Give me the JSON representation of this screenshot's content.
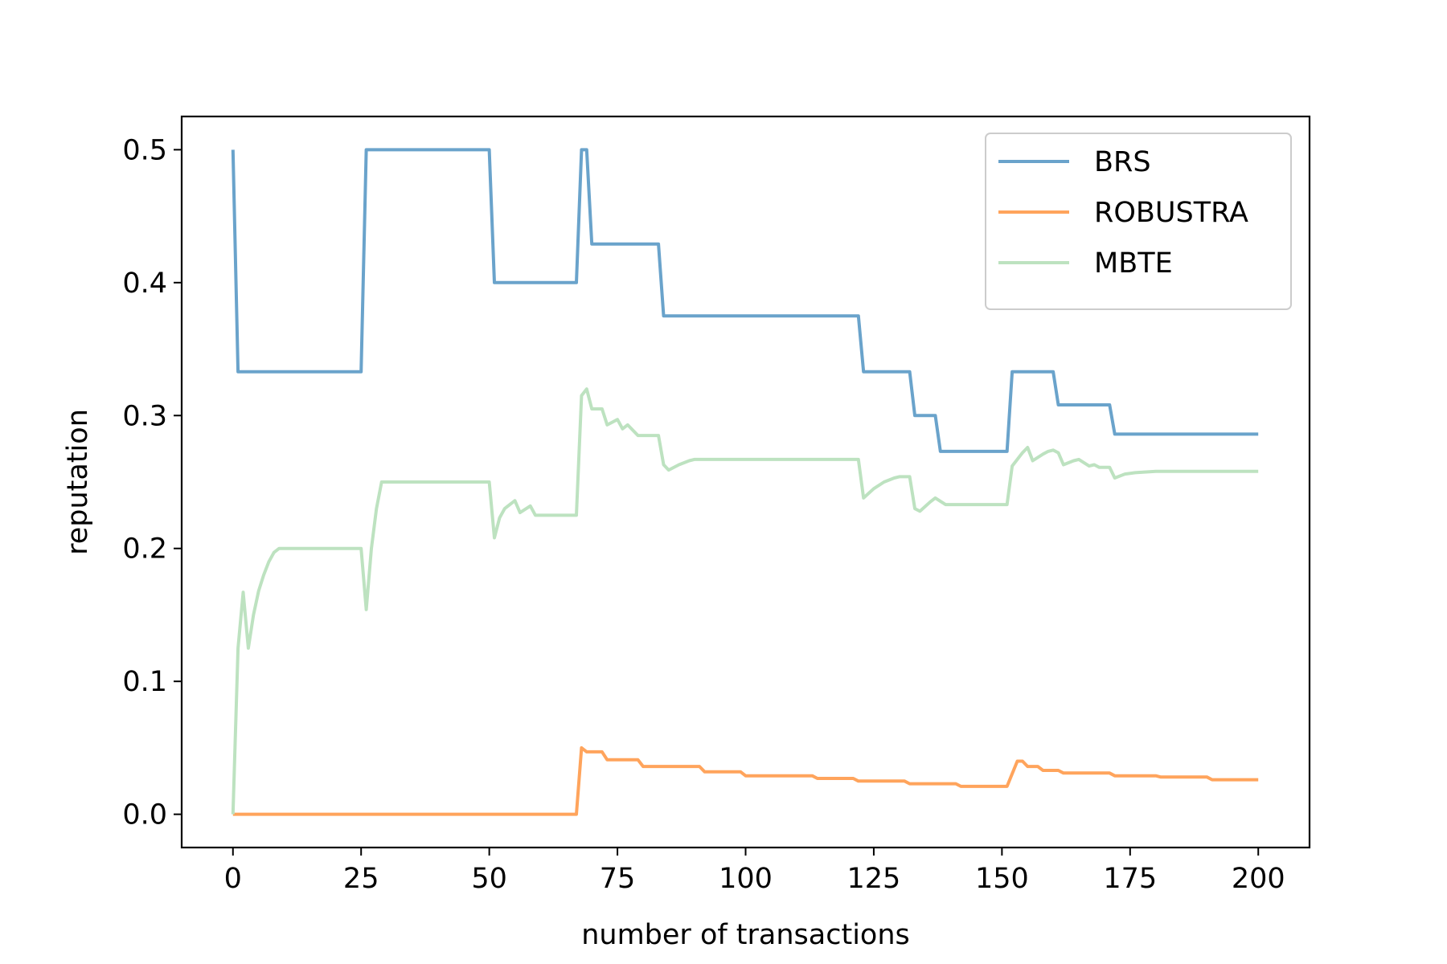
{
  "chart_data": {
    "type": "line",
    "title": "",
    "xlabel": "number of transactions",
    "ylabel": "reputation",
    "xlim": [
      -10,
      210
    ],
    "ylim": [
      -0.025,
      0.525
    ],
    "xticks": [
      0,
      25,
      50,
      75,
      100,
      125,
      150,
      175,
      200
    ],
    "xtick_labels": [
      "0",
      "25",
      "50",
      "75",
      "100",
      "125",
      "150",
      "175",
      "200"
    ],
    "yticks": [
      0.0,
      0.1,
      0.2,
      0.3,
      0.4,
      0.5
    ],
    "ytick_labels": [
      "0.0",
      "0.1",
      "0.2",
      "0.3",
      "0.4",
      "0.5"
    ],
    "grid": false,
    "legend": "top-right",
    "series": [
      {
        "name": "BRS",
        "color": "#6aa3cb",
        "points": [
          [
            0,
            0.5
          ],
          [
            1,
            0.333
          ],
          [
            25,
            0.333
          ],
          [
            26,
            0.5
          ],
          [
            50,
            0.5
          ],
          [
            51,
            0.4
          ],
          [
            67,
            0.4
          ],
          [
            68,
            0.5
          ],
          [
            69,
            0.5
          ],
          [
            70,
            0.429
          ],
          [
            83,
            0.429
          ],
          [
            84,
            0.375
          ],
          [
            122,
            0.375
          ],
          [
            123,
            0.333
          ],
          [
            132,
            0.333
          ],
          [
            133,
            0.3
          ],
          [
            137,
            0.3
          ],
          [
            138,
            0.273
          ],
          [
            151,
            0.273
          ],
          [
            152,
            0.333
          ],
          [
            160,
            0.333
          ],
          [
            161,
            0.308
          ],
          [
            171,
            0.308
          ],
          [
            172,
            0.286
          ],
          [
            200,
            0.286
          ]
        ]
      },
      {
        "name": "ROBUSTRA",
        "color": "#ffa45c",
        "points": [
          [
            0,
            0
          ],
          [
            67,
            0
          ],
          [
            68,
            0.05
          ],
          [
            69,
            0.047
          ],
          [
            72,
            0.047
          ],
          [
            73,
            0.041
          ],
          [
            79,
            0.041
          ],
          [
            80,
            0.036
          ],
          [
            91,
            0.036
          ],
          [
            92,
            0.032
          ],
          [
            99,
            0.032
          ],
          [
            100,
            0.029
          ],
          [
            113,
            0.029
          ],
          [
            114,
            0.027
          ],
          [
            121,
            0.027
          ],
          [
            122,
            0.025
          ],
          [
            131,
            0.025
          ],
          [
            132,
            0.023
          ],
          [
            141,
            0.023
          ],
          [
            142,
            0.021
          ],
          [
            151,
            0.021
          ],
          [
            153,
            0.04
          ],
          [
            154,
            0.04
          ],
          [
            155,
            0.036
          ],
          [
            157,
            0.036
          ],
          [
            158,
            0.033
          ],
          [
            161,
            0.033
          ],
          [
            162,
            0.031
          ],
          [
            171,
            0.031
          ],
          [
            172,
            0.029
          ],
          [
            180,
            0.029
          ],
          [
            181,
            0.028
          ],
          [
            190,
            0.028
          ],
          [
            191,
            0.026
          ],
          [
            200,
            0.026
          ]
        ]
      },
      {
        "name": "MBTE",
        "color": "#bde2c0",
        "points": [
          [
            0,
            0
          ],
          [
            1,
            0.125
          ],
          [
            2,
            0.167
          ],
          [
            3,
            0.125
          ],
          [
            4,
            0.15
          ],
          [
            5,
            0.168
          ],
          [
            6,
            0.18
          ],
          [
            7,
            0.19
          ],
          [
            8,
            0.197
          ],
          [
            9,
            0.2
          ],
          [
            25,
            0.2
          ],
          [
            26,
            0.154
          ],
          [
            27,
            0.2
          ],
          [
            28,
            0.23
          ],
          [
            29,
            0.25
          ],
          [
            50,
            0.25
          ],
          [
            51,
            0.208
          ],
          [
            52,
            0.223
          ],
          [
            53,
            0.23
          ],
          [
            55,
            0.236
          ],
          [
            56,
            0.227
          ],
          [
            58,
            0.232
          ],
          [
            59,
            0.225
          ],
          [
            67,
            0.225
          ],
          [
            68,
            0.315
          ],
          [
            69,
            0.32
          ],
          [
            70,
            0.305
          ],
          [
            72,
            0.305
          ],
          [
            73,
            0.293
          ],
          [
            75,
            0.297
          ],
          [
            76,
            0.29
          ],
          [
            77,
            0.293
          ],
          [
            79,
            0.285
          ],
          [
            83,
            0.285
          ],
          [
            84,
            0.263
          ],
          [
            85,
            0.259
          ],
          [
            87,
            0.263
          ],
          [
            89,
            0.266
          ],
          [
            90,
            0.267
          ],
          [
            122,
            0.267
          ],
          [
            123,
            0.238
          ],
          [
            125,
            0.245
          ],
          [
            127,
            0.25
          ],
          [
            129,
            0.253
          ],
          [
            130,
            0.254
          ],
          [
            132,
            0.254
          ],
          [
            133,
            0.23
          ],
          [
            134,
            0.228
          ],
          [
            136,
            0.235
          ],
          [
            137,
            0.238
          ],
          [
            139,
            0.233
          ],
          [
            151,
            0.233
          ],
          [
            152,
            0.262
          ],
          [
            154,
            0.272
          ],
          [
            155,
            0.276
          ],
          [
            156,
            0.266
          ],
          [
            158,
            0.271
          ],
          [
            159,
            0.273
          ],
          [
            160,
            0.274
          ],
          [
            161,
            0.272
          ],
          [
            162,
            0.263
          ],
          [
            164,
            0.266
          ],
          [
            165,
            0.267
          ],
          [
            167,
            0.262
          ],
          [
            168,
            0.263
          ],
          [
            169,
            0.261
          ],
          [
            171,
            0.261
          ],
          [
            172,
            0.253
          ],
          [
            174,
            0.256
          ],
          [
            176,
            0.257
          ],
          [
            180,
            0.258
          ],
          [
            200,
            0.258
          ]
        ]
      }
    ]
  }
}
